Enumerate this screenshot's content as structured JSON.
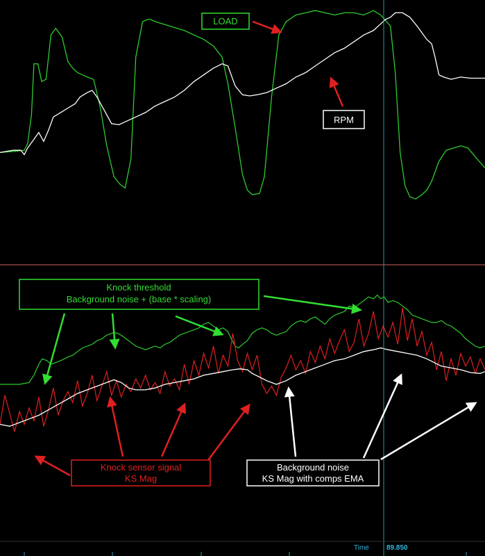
{
  "chart_data": [
    {
      "type": "line",
      "panel": "top",
      "title": "",
      "xlabel": "",
      "ylabel": "",
      "xlim": [
        0,
        100
      ],
      "ylim": [
        0,
        100
      ],
      "grid": false,
      "series": [
        {
          "name": "LOAD",
          "color": "#2ecc2e",
          "x": [
            0,
            3,
            5,
            5.7,
            6.5,
            7,
            7.8,
            8.6,
            9.5,
            10.5,
            11.5,
            12.8,
            14,
            15,
            16,
            17,
            18,
            19.3,
            20.7,
            22,
            23.5,
            24.8,
            25.8,
            27,
            28,
            29.4,
            30.5,
            31,
            32,
            33.5,
            35,
            36.5,
            38,
            40,
            42,
            44,
            45.8,
            47,
            48.5,
            50,
            51,
            52,
            53.5,
            54.5,
            56,
            57.5,
            59,
            61,
            63,
            65,
            67,
            69,
            71,
            73,
            75,
            77,
            78.5,
            79.7,
            80.5,
            81.5,
            82.5,
            83.5,
            84.5,
            85.7,
            87,
            88,
            89,
            90.5,
            92,
            93.5,
            95,
            96.5,
            98,
            100
          ],
          "values": [
            35,
            35.5,
            36,
            39,
            52,
            75,
            75,
            67,
            68,
            88,
            91,
            87,
            76,
            73,
            71,
            70,
            69,
            68,
            55,
            38,
            24,
            20.5,
            19,
            32,
            78,
            94,
            95,
            95,
            94,
            93,
            92,
            91,
            90,
            88,
            86,
            83,
            78,
            66,
            46,
            25,
            18,
            16,
            16.5,
            24,
            60,
            88,
            94,
            97,
            98,
            99,
            98,
            97,
            98,
            98,
            97,
            99,
            97,
            94,
            92,
            71,
            35,
            20,
            15,
            14,
            16,
            18,
            22,
            31,
            36,
            37,
            38,
            37,
            33,
            28
          ]
        },
        {
          "name": "RPM",
          "color": "#ffffff",
          "x": [
            0,
            2.7,
            4.3,
            5,
            5.7,
            6.7,
            8,
            9,
            10,
            11,
            12.5,
            14,
            15.5,
            16.5,
            18,
            19,
            20,
            21,
            22,
            23,
            24.5,
            26,
            28,
            30,
            32,
            34,
            36,
            38,
            40,
            42,
            44,
            45.8,
            47,
            48.5,
            50,
            51.5,
            53,
            55,
            57,
            59,
            61,
            63,
            65,
            67,
            69,
            71,
            73,
            75,
            77,
            78.5,
            79.5,
            80.5,
            81.5,
            83,
            84.5,
            86,
            87,
            88,
            89,
            89.7,
            90.5,
            91.5,
            93,
            95,
            97,
            100
          ],
          "values": [
            35,
            36,
            36,
            34,
            37,
            40,
            44,
            40,
            45,
            51,
            53,
            55,
            57,
            60,
            62,
            63,
            60,
            56,
            52,
            48,
            47.5,
            49,
            51,
            53,
            56,
            58,
            60,
            63,
            67,
            70,
            73,
            75,
            74,
            65,
            61,
            60.5,
            61,
            62,
            64,
            66,
            69,
            71,
            74,
            77,
            80,
            82,
            85,
            88,
            90,
            93,
            95,
            96,
            98,
            98,
            96,
            92,
            89,
            86,
            84,
            78,
            70,
            69,
            68,
            69,
            68.5,
            68.5
          ]
        }
      ],
      "annotations": [
        "LOAD",
        "RPM"
      ]
    },
    {
      "type": "line",
      "panel": "bottom",
      "title": "",
      "xlabel": "Time",
      "ylabel": "",
      "xlim": [
        0,
        100
      ],
      "ylim": [
        0,
        100
      ],
      "grid": false,
      "series": [
        {
          "name": "Knock threshold",
          "color": "#2ecc2e",
          "x": [
            0,
            2,
            4,
            6,
            7,
            8,
            8.7,
            9.7,
            10.5,
            11.5,
            12.5,
            14,
            15,
            16,
            17,
            18,
            19,
            20,
            21,
            22,
            23,
            23.5,
            24.2,
            25,
            26,
            27,
            28,
            29,
            30,
            31,
            32,
            33,
            34,
            35,
            36,
            37,
            38,
            39,
            40,
            41,
            42,
            43,
            44,
            45,
            46,
            47,
            47.7,
            48.5,
            49.2,
            50,
            51,
            52,
            53,
            54,
            55,
            56,
            57,
            58,
            59,
            60,
            61,
            62,
            63,
            64,
            65,
            66,
            67,
            68,
            69,
            70,
            71,
            72,
            73,
            74,
            75,
            76,
            77,
            77.8,
            78.5,
            79.2,
            80,
            81,
            82,
            83,
            84,
            85,
            86,
            87,
            88,
            89,
            90,
            91,
            92,
            93,
            94,
            95,
            96,
            97,
            98,
            99,
            100
          ],
          "values": [
            50,
            50,
            50,
            51,
            55,
            61,
            64,
            63,
            61,
            62,
            63,
            65,
            66,
            68,
            70,
            71,
            72,
            74,
            75,
            77,
            78,
            78.5,
            78,
            77,
            75,
            73,
            71,
            70,
            69,
            70,
            71,
            70,
            72,
            73,
            75,
            77,
            78,
            79,
            80,
            81,
            83,
            84,
            82,
            80,
            81,
            79,
            75,
            71,
            70,
            72,
            74,
            78,
            80,
            81,
            80,
            78,
            77,
            78,
            79,
            82,
            84,
            85,
            84,
            86,
            87,
            85,
            83,
            86,
            88,
            89,
            90,
            93,
            92,
            94,
            96,
            98,
            97,
            99,
            97,
            98,
            95,
            96,
            95,
            93,
            91,
            88,
            87,
            86,
            85,
            84,
            84,
            85,
            83,
            82,
            80,
            78,
            75,
            73,
            71,
            70,
            71
          ]
        },
        {
          "name": "Knock sensor signal",
          "color": "#e02020",
          "x": [
            0,
            1,
            2,
            3,
            4,
            5,
            6,
            7,
            8,
            9,
            10,
            11,
            12,
            13,
            14,
            15,
            16,
            17,
            18,
            19,
            20,
            21,
            22,
            23,
            24,
            25,
            26,
            27,
            28,
            29,
            30,
            31,
            32,
            33,
            34,
            35,
            36,
            37,
            38,
            39,
            40,
            41,
            42,
            43,
            44,
            45,
            46,
            47,
            48,
            49,
            50,
            51,
            52,
            53,
            54,
            55,
            56,
            57,
            58,
            59,
            60,
            61,
            62,
            63,
            64,
            65,
            66,
            67,
            68,
            69,
            70,
            71,
            72,
            73,
            74,
            75,
            76,
            77,
            78,
            79,
            80,
            81,
            82,
            83,
            84,
            85,
            86,
            87,
            88,
            89,
            90,
            91,
            92,
            93,
            94,
            95,
            96,
            97,
            98,
            99,
            100
          ],
          "values": [
            28,
            44,
            34,
            24,
            35,
            28,
            37,
            30,
            43,
            27,
            36,
            48,
            33,
            41,
            46,
            40,
            52,
            38,
            45,
            55,
            41,
            49,
            57,
            44,
            52,
            43,
            50,
            46,
            53,
            48,
            55,
            47,
            51,
            45,
            57,
            49,
            53,
            47,
            61,
            50,
            63,
            55,
            67,
            59,
            71,
            56,
            66,
            60,
            78,
            63,
            57,
            67,
            58,
            66,
            50,
            45,
            49,
            44,
            54,
            59,
            66,
            58,
            63,
            56,
            68,
            62,
            71,
            64,
            75,
            67,
            74,
            80,
            68,
            73,
            86,
            71,
            78,
            90,
            75,
            82,
            76,
            84,
            72,
            92,
            74,
            86,
            71,
            79,
            66,
            73,
            58,
            68,
            52,
            64,
            55,
            67,
            60,
            65,
            56,
            64,
            58
          ]
        },
        {
          "name": "Background noise",
          "color": "#ffffff",
          "x": [
            0,
            2,
            4,
            6,
            8,
            10,
            12,
            14,
            16,
            18,
            20,
            22,
            23.5,
            25,
            26.5,
            28,
            30,
            32,
            34,
            36,
            38,
            40,
            42,
            44,
            46,
            48,
            49.5,
            51,
            52,
            53.5,
            55,
            57,
            59,
            61,
            63,
            65,
            67,
            69,
            71,
            73,
            75,
            77,
            78.5,
            80,
            82,
            84,
            86,
            88,
            89.5,
            91,
            93,
            95,
            97,
            99,
            100
          ],
          "values": [
            28,
            27,
            29,
            31,
            33,
            36,
            39,
            42,
            45,
            47,
            49,
            51,
            52.5,
            51,
            48,
            47,
            47,
            48,
            50,
            51,
            52,
            53,
            55,
            56,
            57,
            58,
            58.5,
            58,
            56,
            54,
            52,
            50,
            52,
            55,
            57,
            59,
            61,
            63,
            64,
            66,
            68,
            69,
            70,
            69,
            68,
            67,
            66,
            64,
            62,
            60,
            59,
            58,
            56.5,
            56,
            57
          ]
        }
      ],
      "annotations": [
        "Knock threshold",
        "Background noise + (base * scaling)",
        "Knock sensor signal",
        "KS Mag",
        "Background noise",
        "KS Mag with comps EMA"
      ]
    }
  ],
  "labels": {
    "load": "LOAD",
    "rpm": "RPM",
    "threshold_line1": "Knock threshold",
    "threshold_line2": "Background noise + (base * scaling)",
    "ks_line1": "Knock sensor signal",
    "ks_line2": "KS Mag",
    "bg_line1": "Background noise",
    "bg_line2": "KS Mag with comps EMA"
  },
  "time_axis": {
    "label": "Time",
    "value": "89.850"
  },
  "colors": {
    "background": "#000000",
    "load": "#2ecc2e",
    "rpm": "#ffffff",
    "threshold": "#2ecc2e",
    "ks_signal": "#e02020",
    "bg_noise": "#ffffff",
    "cursor": "#1fa0a8",
    "divider": "#d06060",
    "arrow_red": "#e02020",
    "arrow_green": "#33dd33",
    "arrow_white": "#ffffff",
    "time_text": "#2fb8e0"
  }
}
